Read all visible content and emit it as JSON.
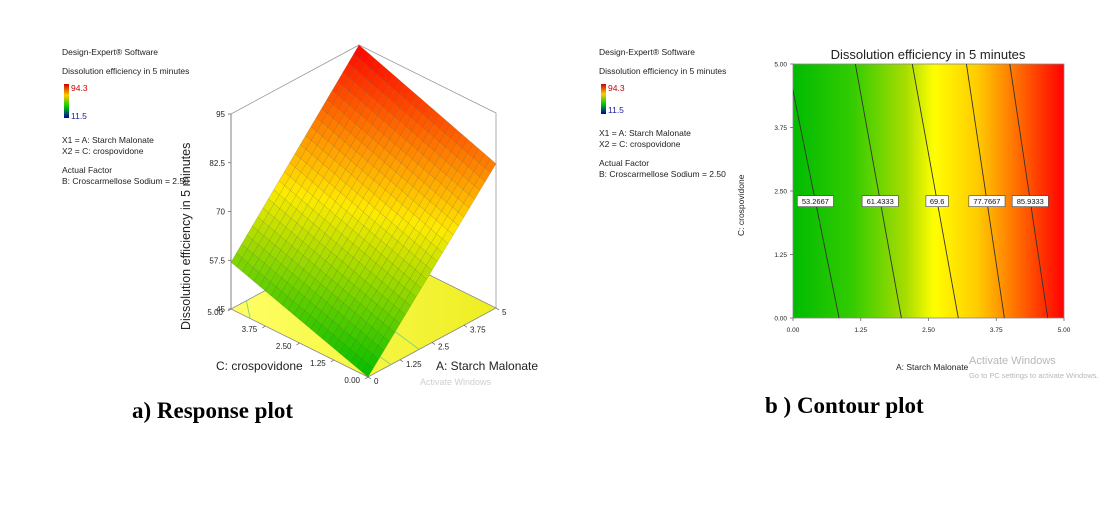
{
  "chart_data": [
    {
      "type": "surface3d",
      "software": "Design-Expert® Software",
      "response_name": "Dissolution efficiency in 5 minutes",
      "legend_max": "94.3",
      "legend_min": "11.5",
      "factor_x1": "X1 = A: Starch Malonate",
      "factor_x2": "X2 = C: crospovidone",
      "actual_factor_title": "Actual Factor",
      "actual_factor": "B: Croscarmellose Sodium  = 2.50",
      "zlabel": "Dissolution efficiency in 5 minutes",
      "xlabel": "A: Starch Malonate",
      "ylabel": "C: crospovidone",
      "zticks": [
        "45",
        "57.5",
        "70",
        "82.5",
        "95"
      ],
      "xticks": [
        "0",
        "1.25",
        "2.5",
        "3.75",
        "5"
      ],
      "yticks": [
        "0.00",
        "1.25",
        "2.50",
        "3.75",
        "5.00"
      ],
      "zlim": [
        45,
        95
      ],
      "xlim": [
        0,
        5
      ],
      "ylim": [
        0,
        5
      ],
      "corners": [
        {
          "A": 0,
          "C": 0,
          "z": 45
        },
        {
          "A": 5,
          "C": 0,
          "z": 82
        },
        {
          "A": 0,
          "C": 5,
          "z": 57
        },
        {
          "A": 5,
          "C": 5,
          "z": 95
        }
      ],
      "caption": "a) Response plot"
    },
    {
      "type": "contour",
      "title": "Dissolution efficiency in 5 minutes",
      "software": "Design-Expert® Software",
      "response_name": "Dissolution efficiency in 5 minutes",
      "legend_max": "94.3",
      "legend_min": "11.5",
      "factor_x1": "X1 = A: Starch Malonate",
      "factor_x2": "X2 = C: crospovidone",
      "actual_factor_title": "Actual Factor",
      "actual_factor": "B: Croscarmellose Sodium  = 2.50",
      "xlabel": "A: Starch Malonate",
      "ylabel": "C: crospovidone",
      "xticks": [
        "0.00",
        "1.25",
        "2.50",
        "3.75",
        "5.00"
      ],
      "yticks": [
        "0.00",
        "1.25",
        "2.50",
        "3.75",
        "5.00"
      ],
      "xlim": [
        0,
        5
      ],
      "ylim": [
        0,
        5
      ],
      "contours": [
        {
          "label": "53.2667",
          "level": 53.2667,
          "A_at_C0": 0.85,
          "A_at_C5": -0.1
        },
        {
          "label": "61.4333",
          "level": 61.4333,
          "A_at_C0": 2.0,
          "A_at_C5": 1.15
        },
        {
          "label": "69.6",
          "level": 69.6,
          "A_at_C0": 3.05,
          "A_at_C5": 2.2
        },
        {
          "label": "77.7667",
          "level": 77.7667,
          "A_at_C0": 3.9,
          "A_at_C5": 3.2
        },
        {
          "label": "85.9333",
          "level": 85.9333,
          "A_at_C0": 4.7,
          "A_at_C5": 4.0
        }
      ],
      "caption": "b ) Contour plot"
    }
  ],
  "watermark": {
    "activate_title": "Activate Windows",
    "activate_sub": "Go to PC settings to activate Windows.",
    "activate_partial": "Activate Windows"
  },
  "colors": {
    "low": "#00a000",
    "mid": "#ffff00",
    "high": "#ff0000",
    "legend_top": "#cc0000",
    "legend_bottom": "#0000aa"
  }
}
